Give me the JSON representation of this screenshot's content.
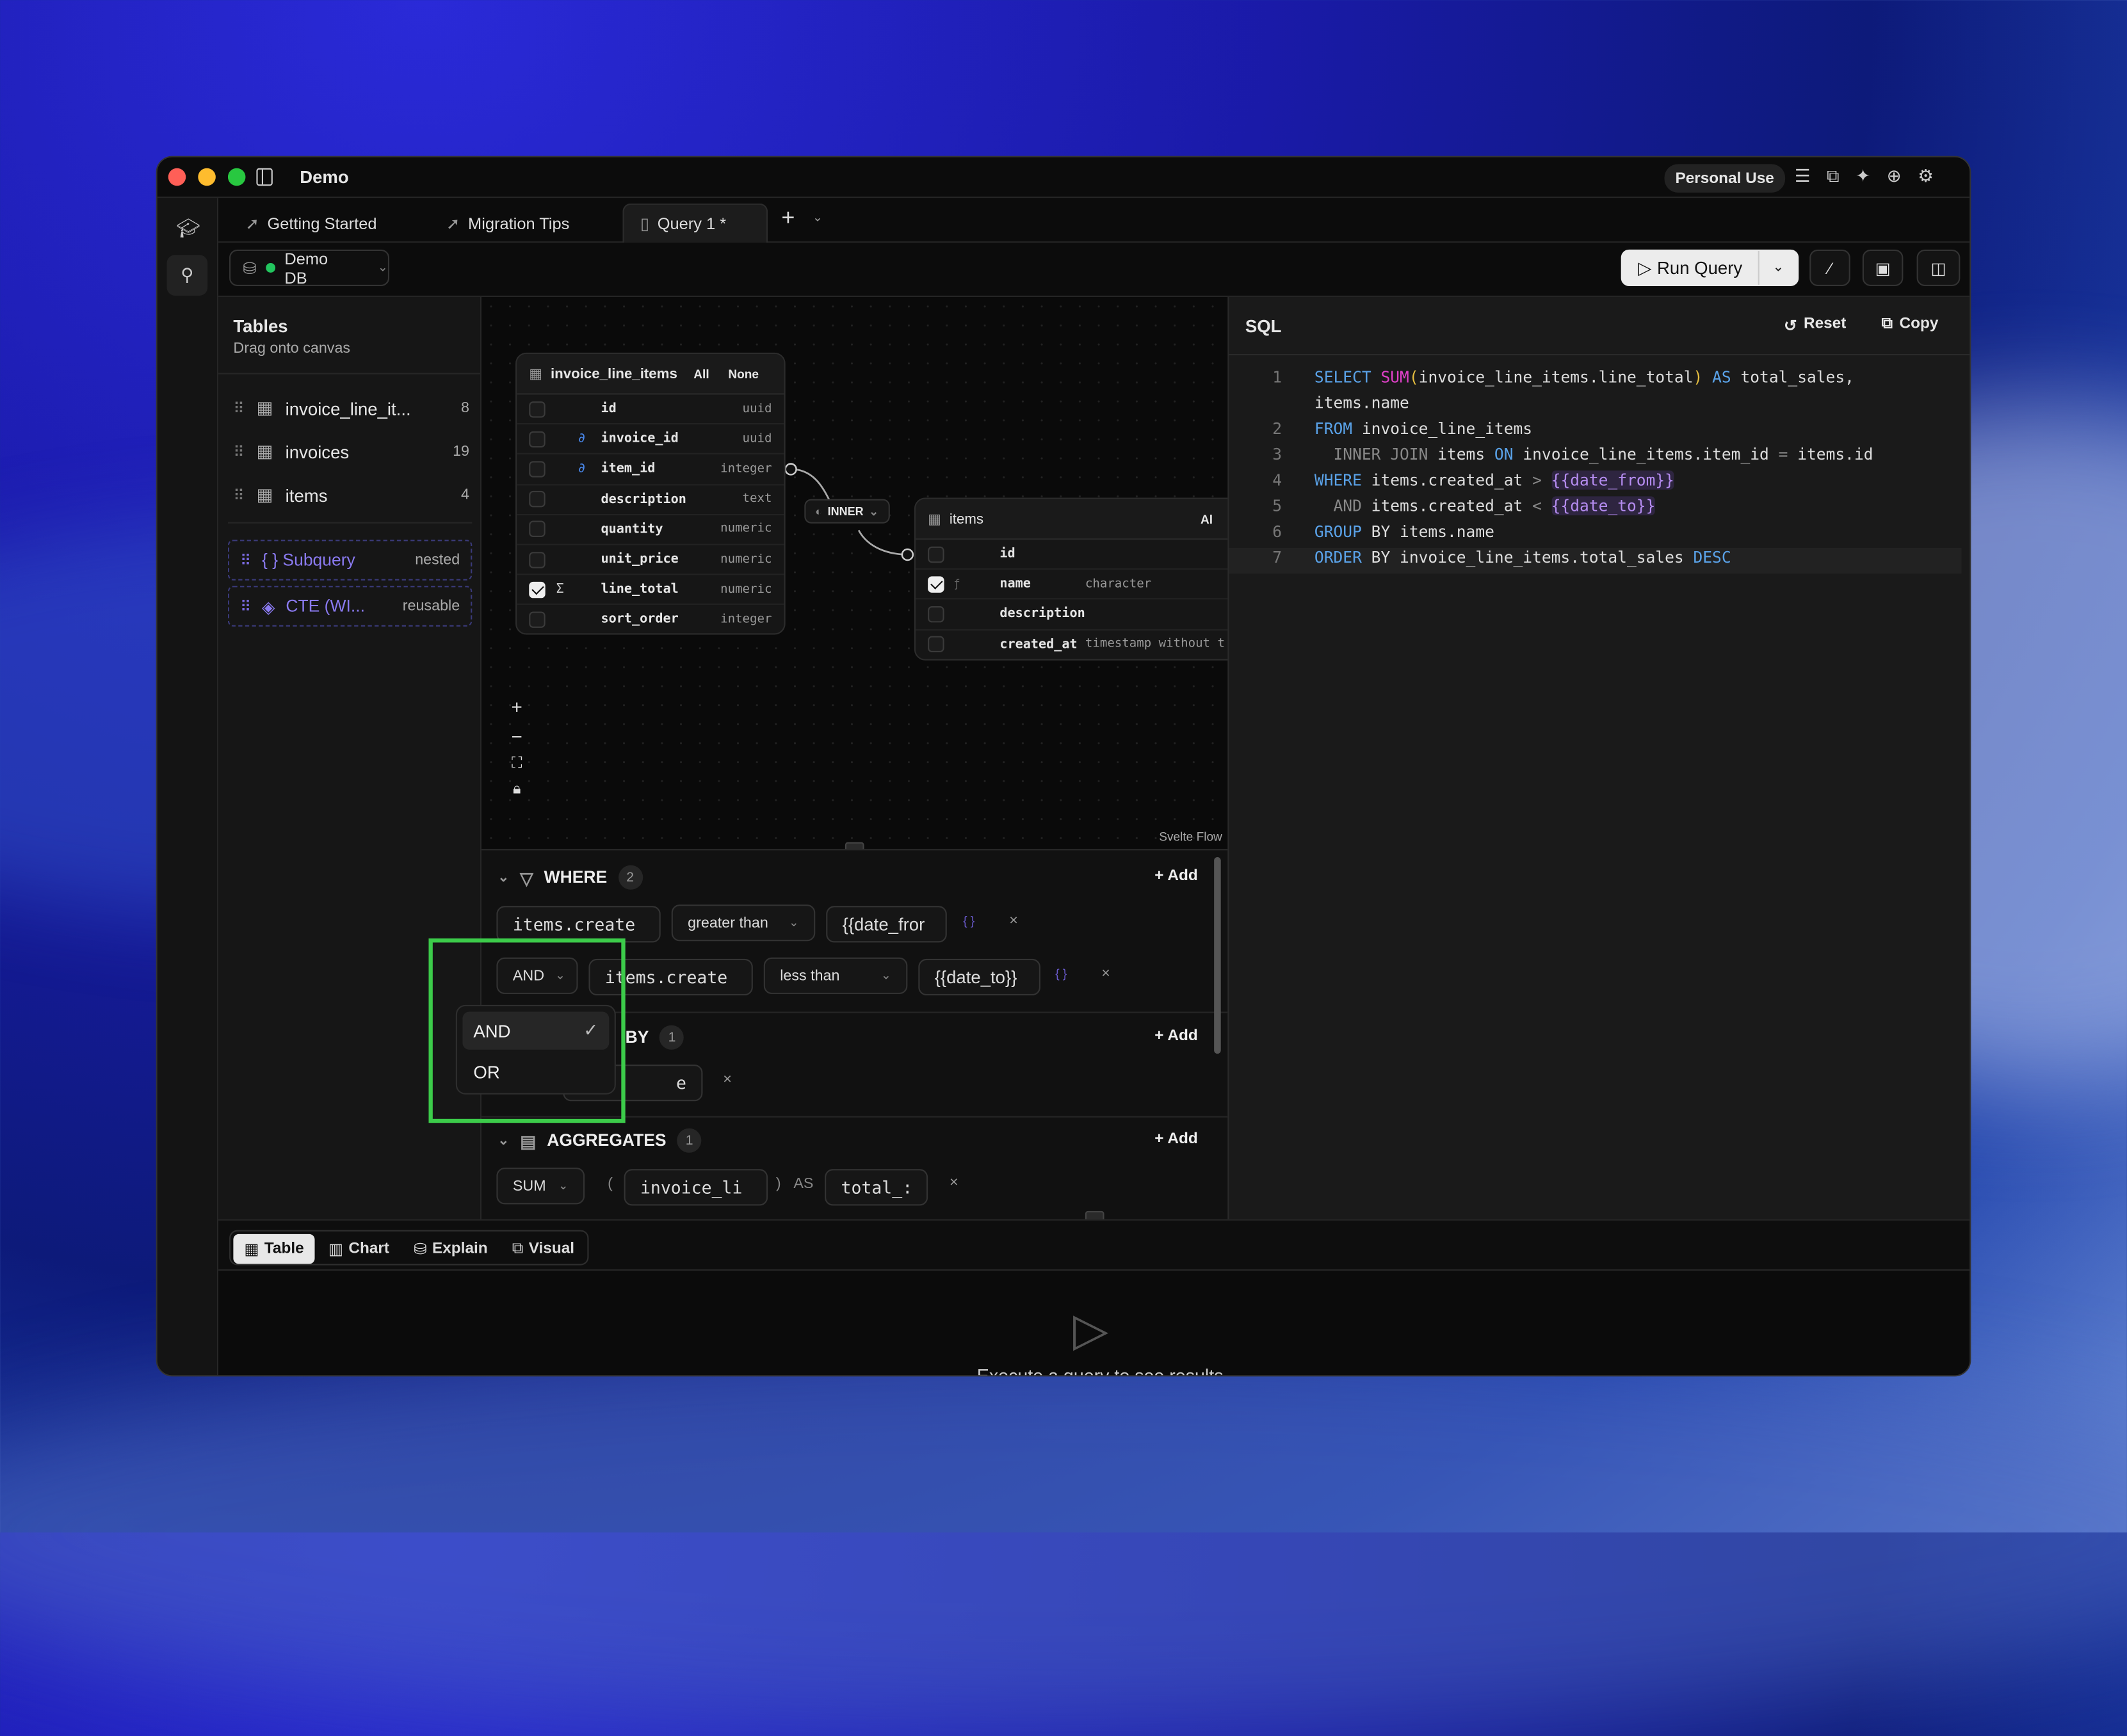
{
  "window": {
    "title": "Demo"
  },
  "titlebar": {
    "plan_badge": "Personal Use",
    "icons": [
      "checklist-icon",
      "sitemap-icon",
      "sparkles-icon",
      "globe-icon",
      "gear-icon"
    ]
  },
  "tabs": [
    {
      "label": "Getting Started",
      "icon": "rocket-icon"
    },
    {
      "label": "Migration Tips",
      "icon": "rocket-icon"
    },
    {
      "label": "Query 1 *",
      "icon": "file-code-icon",
      "active": true
    }
  ],
  "toolbar": {
    "db_name": "Demo DB",
    "db_status_color": "#22c55e",
    "run_label": "Run Query"
  },
  "tables_panel": {
    "title": "Tables",
    "subtitle": "Drag onto canvas",
    "items": [
      {
        "name": "invoice_line_it...",
        "count": "8"
      },
      {
        "name": "invoices",
        "count": "19"
      },
      {
        "name": "items",
        "count": "4"
      }
    ],
    "special": [
      {
        "name": "{ } Subquery",
        "tag": "nested"
      },
      {
        "name": "CTE (WI...",
        "tag": "reusable"
      }
    ]
  },
  "canvas": {
    "node1": {
      "title": "invoice_line_items",
      "all": "All",
      "none": "None",
      "columns": [
        {
          "name": "id",
          "type": "uuid"
        },
        {
          "name": "invoice_id",
          "type": "uuid",
          "fk": true
        },
        {
          "name": "item_id",
          "type": "integer",
          "fk": true
        },
        {
          "name": "description",
          "type": "text"
        },
        {
          "name": "quantity",
          "type": "numeric"
        },
        {
          "name": "unit_price",
          "type": "numeric"
        },
        {
          "name": "line_total",
          "type": "numeric",
          "checked": true,
          "agg": "Σ"
        },
        {
          "name": "sort_order",
          "type": "integer"
        }
      ]
    },
    "join": {
      "label": "INNER"
    },
    "node2": {
      "title": "items",
      "all": "Al",
      "columns": [
        {
          "name": "id",
          "type": ""
        },
        {
          "name": "name",
          "type": "character",
          "checked": true
        },
        {
          "name": "description",
          "type": ""
        },
        {
          "name": "created_at",
          "type": "timestamp without t"
        }
      ]
    },
    "attribution": "Svelte Flow"
  },
  "builder": {
    "where": {
      "title": "WHERE",
      "count": "2",
      "add": "+ Add",
      "rows": [
        {
          "column": "items.create",
          "operator": "greater than",
          "value": "{{date_fror"
        },
        {
          "conj": "AND",
          "column": "items.create",
          "operator": "less than",
          "value": "{{date_to}}"
        }
      ]
    },
    "group_by": {
      "title": "BY",
      "count": "1",
      "add": "+ Add",
      "value": "e"
    },
    "aggregates": {
      "title": "AGGREGATES",
      "count": "1",
      "add": "+ Add",
      "func": "SUM",
      "column": "invoice_li",
      "as": "AS",
      "alias": "total_:",
      "open": "(",
      "close": ")"
    },
    "dropdown": {
      "options": [
        "AND",
        "OR"
      ],
      "selected": "AND"
    }
  },
  "sql": {
    "title": "SQL",
    "reset": "Reset",
    "copy": "Copy",
    "lines": [
      {
        "n": "1",
        "tokens": [
          [
            "SELECT ",
            "k"
          ],
          [
            "SUM",
            "f"
          ],
          [
            "(",
            "p"
          ],
          [
            "invoice_line_items.line_total",
            ""
          ],
          [
            ")",
            "p"
          ],
          [
            " AS ",
            "k"
          ],
          [
            "total_sales,",
            ""
          ]
        ]
      },
      {
        "n": "",
        "tokens": [
          [
            "items.name",
            ""
          ]
        ]
      },
      {
        "n": "2",
        "tokens": [
          [
            "FROM ",
            "k"
          ],
          [
            "invoice_line_items",
            ""
          ]
        ]
      },
      {
        "n": "3",
        "tokens": [
          [
            "  INNER JOIN ",
            "d"
          ],
          [
            "items ",
            ""
          ],
          [
            "ON ",
            "k"
          ],
          [
            "invoice_line_items.item_id ",
            ""
          ],
          [
            "= ",
            "d"
          ],
          [
            "items.id",
            ""
          ]
        ]
      },
      {
        "n": "4",
        "tokens": [
          [
            "WHERE ",
            "k"
          ],
          [
            "items.created_at ",
            ""
          ],
          [
            "> ",
            "d"
          ],
          [
            "{{date_from}}",
            "v"
          ]
        ]
      },
      {
        "n": "5",
        "tokens": [
          [
            "  AND ",
            "d"
          ],
          [
            "items.created_at ",
            ""
          ],
          [
            "< ",
            "d"
          ],
          [
            "{{date_to}}",
            "v"
          ]
        ]
      },
      {
        "n": "6",
        "tokens": [
          [
            "GROUP ",
            "k"
          ],
          [
            "BY items.name",
            ""
          ]
        ]
      },
      {
        "n": "7",
        "tokens": [
          [
            "ORDER ",
            "k"
          ],
          [
            "BY invoice_line_items.total_sales ",
            ""
          ],
          [
            "DESC",
            "k"
          ]
        ]
      }
    ]
  },
  "results": {
    "tabs": [
      "Table",
      "Chart",
      "Explain",
      "Visual"
    ],
    "active": "Table",
    "empty_message": "Execute a query to see results"
  }
}
